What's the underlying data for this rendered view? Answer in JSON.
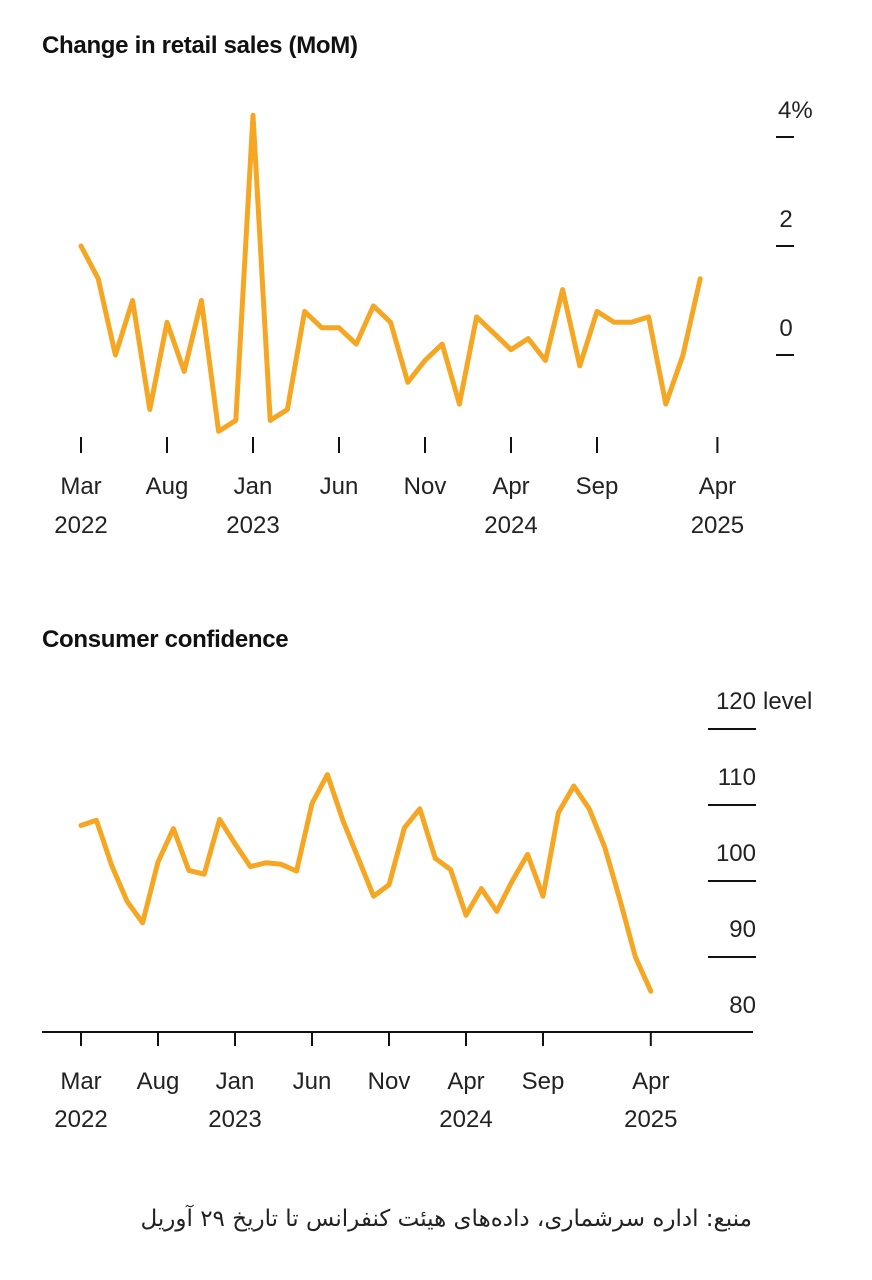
{
  "chart_data": [
    {
      "type": "line",
      "title": "Change in retail sales (MoM)",
      "unit_label": "%",
      "ylim": [
        -0.8,
        4.6
      ],
      "y_ticks": [
        {
          "value": 4,
          "label": "4%"
        },
        {
          "value": 2,
          "label": "2"
        },
        {
          "value": 0,
          "label": "0"
        }
      ],
      "x_ticks": [
        {
          "index": 0,
          "month": "Mar",
          "year": "2022"
        },
        {
          "index": 5,
          "month": "Aug",
          "year": ""
        },
        {
          "index": 10,
          "month": "Jan",
          "year": "2023"
        },
        {
          "index": 15,
          "month": "Jun",
          "year": ""
        },
        {
          "index": 20,
          "month": "Nov",
          "year": ""
        },
        {
          "index": 25,
          "month": "Apr",
          "year": "2024"
        },
        {
          "index": 30,
          "month": "Sep",
          "year": ""
        },
        {
          "index": 37,
          "month": "Apr",
          "year": "2025"
        }
      ],
      "series": [
        {
          "name": "Retail sales MoM",
          "color": "#F5A623",
          "values": [
            2.0,
            1.4,
            0.0,
            1.0,
            -1.0,
            0.6,
            -0.3,
            1.0,
            -1.4,
            -1.2,
            4.4,
            -1.2,
            -1.0,
            0.8,
            0.5,
            0.5,
            0.2,
            0.9,
            0.6,
            -0.5,
            -0.1,
            0.2,
            -0.9,
            0.7,
            0.4,
            0.1,
            0.3,
            -0.1,
            1.2,
            -0.2,
            0.8,
            0.6,
            0.6,
            0.7,
            -0.9,
            0.0,
            1.4
          ]
        }
      ]
    },
    {
      "type": "line",
      "title": "Consumer confidence",
      "unit_label": "level",
      "ylim": [
        80,
        120
      ],
      "y_ticks": [
        {
          "value": 120,
          "label": "120"
        },
        {
          "value": 110,
          "label": "110"
        },
        {
          "value": 100,
          "label": "100"
        },
        {
          "value": 90,
          "label": "90"
        },
        {
          "value": 80,
          "label": "80"
        }
      ],
      "x_ticks": [
        {
          "index": 0,
          "month": "Mar",
          "year": "2022"
        },
        {
          "index": 5,
          "month": "Aug",
          "year": ""
        },
        {
          "index": 10,
          "month": "Jan",
          "year": "2023"
        },
        {
          "index": 15,
          "month": "Jun",
          "year": ""
        },
        {
          "index": 20,
          "month": "Nov",
          "year": ""
        },
        {
          "index": 25,
          "month": "Apr",
          "year": "2024"
        },
        {
          "index": 30,
          "month": "Sep",
          "year": ""
        },
        {
          "index": 37,
          "month": "Apr",
          "year": "2025"
        }
      ],
      "series": [
        {
          "name": "Consumer confidence",
          "color": "#F5A623",
          "values": [
            107.3,
            108.0,
            102.0,
            97.3,
            94.5,
            102.5,
            106.9,
            101.4,
            100.9,
            108.1,
            104.9,
            101.9,
            102.4,
            102.2,
            101.3,
            110.2,
            114.0,
            108.0,
            103.0,
            98.0,
            99.5,
            107.0,
            109.5,
            103.0,
            101.5,
            95.5,
            99.0,
            96.0,
            100.0,
            103.5,
            98.0,
            109.0,
            112.5,
            109.5,
            104.5,
            97.5,
            90.0,
            85.5
          ]
        }
      ]
    }
  ],
  "source_text": "منبع: اداره سرشماری، داده‌های هیئت کنفرانس تا تاریخ ۲۹ آوریل"
}
